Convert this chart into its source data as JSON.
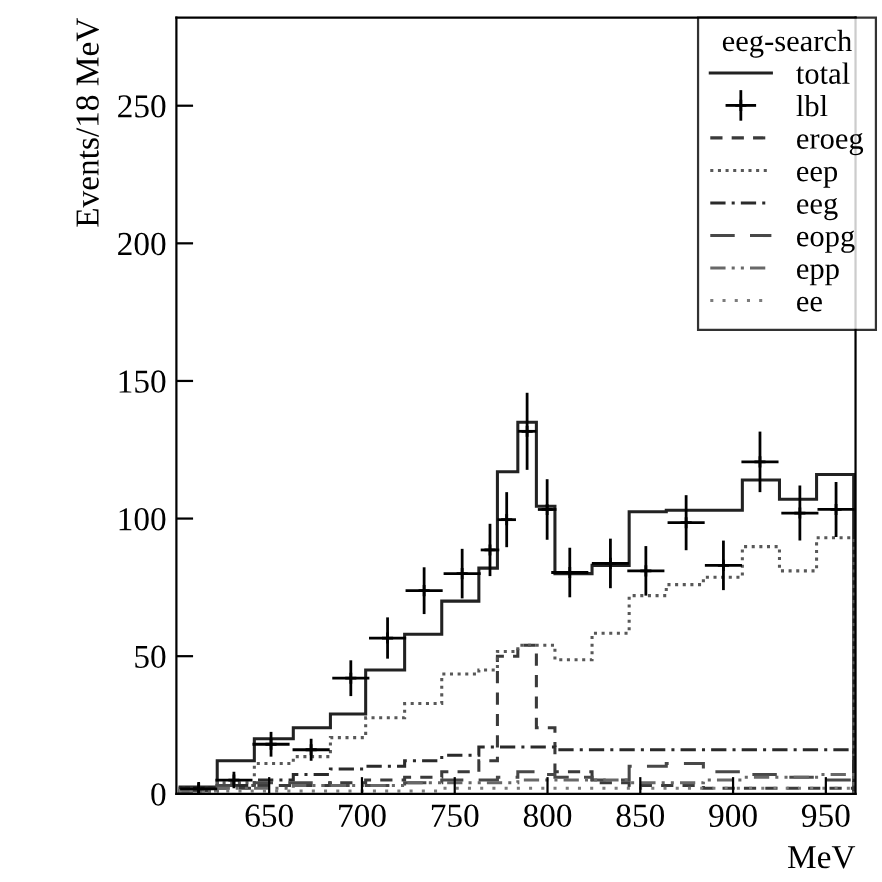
{
  "chart_data": {
    "type": "histogram",
    "xlabel": "MeV",
    "ylabel": "Events/18 MeV",
    "legend_title": "eeg-search",
    "bins": [
      602,
      622,
      642,
      663,
      683,
      702,
      723,
      743,
      763,
      773,
      784,
      794,
      804,
      824,
      844,
      864,
      884,
      905,
      925,
      945,
      965
    ],
    "series": [
      {
        "name": "total",
        "color": "#222222",
        "line_style": "solid",
        "values": [
          2.5,
          12,
          20,
          24,
          29,
          45,
          58,
          70,
          82,
          117,
          135,
          104.5,
          80,
          83,
          102.5,
          103,
          103,
          114,
          107,
          116
        ]
      },
      {
        "name": "lbl",
        "type": "scatter",
        "marker": "cross",
        "color": "#000000",
        "x": [
          612,
          631,
          651,
          672.6,
          694,
          713.8,
          733.5,
          754,
          769,
          778,
          789,
          799.8,
          812,
          833.9,
          853,
          874.7,
          894.8,
          914.5,
          936,
          955.5
        ],
        "values": [
          1.8,
          5,
          18,
          16,
          42,
          56.6,
          73.8,
          80,
          88.6,
          99.6,
          131.7,
          103.3,
          80.4,
          83.7,
          81,
          98.5,
          83,
          120.6,
          102,
          103.3
        ],
        "errors": [
          2.5,
          3,
          4.5,
          4,
          6.5,
          7.5,
          8.5,
          9,
          9.5,
          10,
          14,
          11,
          9,
          9,
          9,
          10,
          9,
          11,
          10,
          10
        ],
        "xerrors": [
          10,
          10,
          10,
          10,
          10,
          10,
          10,
          10,
          5,
          5,
          5,
          5,
          10,
          10,
          10,
          10,
          10,
          10,
          10,
          10
        ]
      },
      {
        "name": "eroeg",
        "color": "#3a3a3a",
        "line_style": "dashed",
        "values": [
          1,
          2,
          3,
          3,
          4,
          5,
          6,
          8,
          12,
          50,
          54,
          24,
          8,
          4,
          3,
          3,
          2,
          2,
          2,
          2
        ]
      },
      {
        "name": "eep",
        "color": "#585858",
        "line_style": "dotted",
        "values": [
          2,
          4,
          11,
          13.5,
          20.4,
          27.6,
          32.8,
          43.5,
          45,
          51.7,
          54,
          54,
          48.7,
          58.3,
          72,
          76,
          78.7,
          89.8,
          81,
          93
        ]
      },
      {
        "name": "eeg",
        "color": "#2a2a2a",
        "line_style": "dashdot",
        "values": [
          2,
          3,
          5,
          7,
          9,
          10,
          12,
          14,
          17,
          17,
          17,
          17,
          16,
          16,
          16,
          16,
          16,
          16,
          16,
          16
        ]
      },
      {
        "name": "eopg",
        "color": "#484848",
        "line_style": "longdash",
        "values": [
          1,
          3,
          4,
          4,
          3,
          3,
          4,
          5,
          5,
          6,
          8,
          7,
          6,
          5,
          10,
          11,
          8,
          7,
          6,
          5
        ]
      },
      {
        "name": "epp",
        "color": "#686868",
        "line_style": "dashdotdot",
        "values": [
          1,
          2,
          2,
          3,
          3,
          3,
          4,
          4,
          4,
          4,
          5,
          5,
          5,
          5,
          4,
          4,
          5,
          6,
          6,
          7
        ]
      },
      {
        "name": "ee",
        "color": "#7c7c7c",
        "line_style": "sparse",
        "values": [
          1,
          1,
          1,
          1,
          1,
          1,
          1,
          2,
          2,
          2,
          2,
          2,
          2,
          2,
          2,
          2,
          2,
          2,
          2,
          2
        ]
      }
    ],
    "xlim": [
      600,
      966
    ],
    "ylim": [
      0,
      282
    ],
    "xticks": [
      650,
      700,
      750,
      800,
      850,
      900,
      950
    ],
    "yticks": [
      0,
      50,
      100,
      150,
      200,
      250
    ],
    "legend": "top right",
    "grid": false
  }
}
